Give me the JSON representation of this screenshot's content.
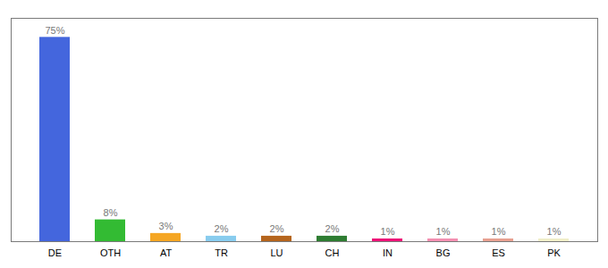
{
  "chart_data": {
    "type": "bar",
    "categories": [
      "DE",
      "OTH",
      "AT",
      "TR",
      "LU",
      "CH",
      "IN",
      "BG",
      "ES",
      "PK"
    ],
    "values": [
      75,
      8,
      3,
      2,
      2,
      2,
      1,
      1,
      1,
      1
    ],
    "value_labels": [
      "75%",
      "8%",
      "3%",
      "2%",
      "2%",
      "2%",
      "1%",
      "1%",
      "1%",
      "1%"
    ],
    "colors": [
      "#4466dd",
      "#33bb33",
      "#f5a623",
      "#88ccee",
      "#b5651d",
      "#2e7d32",
      "#ee1177",
      "#f48fb1",
      "#e8a090",
      "#f0eec8"
    ],
    "ylim": [
      0,
      82
    ],
    "data_labels": true,
    "tick_labels": "x"
  }
}
